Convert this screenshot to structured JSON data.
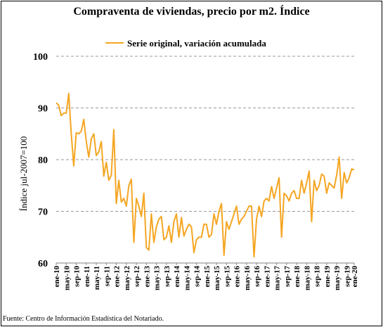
{
  "chart_data": {
    "type": "line",
    "title": "Compraventa de viviendas, precio por m2. Índice",
    "ylabel": "Índice jul-2007=100",
    "xlabel": "",
    "ylim": [
      60,
      100
    ],
    "yticks": [
      60,
      70,
      80,
      90,
      100
    ],
    "grid": true,
    "legend_position": "top-center",
    "series": [
      {
        "name": "Serie original, variación acumulada",
        "color": "#F5A623",
        "values": [
          91.0,
          90.5,
          88.5,
          89.0,
          89.0,
          92.8,
          85.0,
          78.8,
          85.2,
          85.0,
          85.5,
          87.8,
          83.5,
          80.5,
          84.0,
          85.0,
          80.8,
          81.5,
          83.5,
          76.8,
          79.5,
          76.0,
          77.0,
          85.8,
          71.5,
          76.0,
          71.8,
          72.5,
          71.0,
          75.0,
          76.2,
          64.0,
          72.5,
          71.0,
          69.0,
          73.5,
          63.0,
          62.5,
          69.5,
          64.0,
          67.0,
          68.5,
          69.0,
          64.5,
          65.0,
          67.2,
          64.0,
          68.0,
          69.5,
          65.0,
          68.8,
          65.2,
          66.5,
          67.5,
          67.0,
          62.0,
          64.5,
          65.0,
          65.0,
          67.5,
          67.5,
          65.0,
          65.5,
          69.5,
          67.5,
          70.0,
          71.5,
          61.5,
          68.0,
          66.5,
          68.0,
          69.5,
          71.0,
          67.5,
          68.5,
          69.0,
          70.0,
          71.0,
          71.0,
          61.2,
          68.5,
          71.0,
          69.0,
          72.0,
          72.5,
          72.0,
          74.8,
          72.5,
          74.5,
          76.5,
          65.0,
          73.5,
          73.0,
          72.0,
          73.5,
          74.0,
          72.5,
          72.5,
          76.0,
          73.5,
          75.5,
          77.8,
          68.0,
          76.0,
          74.0,
          75.0,
          77.2,
          76.8,
          73.5,
          75.5,
          75.0,
          74.5,
          77.0,
          80.5,
          72.5,
          77.5,
          75.5,
          76.5,
          78.2,
          78.0
        ]
      }
    ],
    "x_labels": [
      "ene-10",
      "may-10",
      "sep-10",
      "ene-11",
      "may-11",
      "sep-11",
      "ene-12",
      "may-12",
      "sep-12",
      "ene-13",
      "may-13",
      "sep-13",
      "ene-14",
      "may-14",
      "sep-14",
      "ene-15",
      "may-15",
      "sep-15",
      "ene-16",
      "may-16",
      "sep-16",
      "ene-17",
      "may-17",
      "sep-17",
      "ene-18",
      "may-18",
      "sep-18",
      "ene-19",
      "may-19",
      "sep-19",
      "ene-20"
    ]
  },
  "footer": {
    "source": "Fuente: Centro de Información Estadística del Notariado."
  }
}
